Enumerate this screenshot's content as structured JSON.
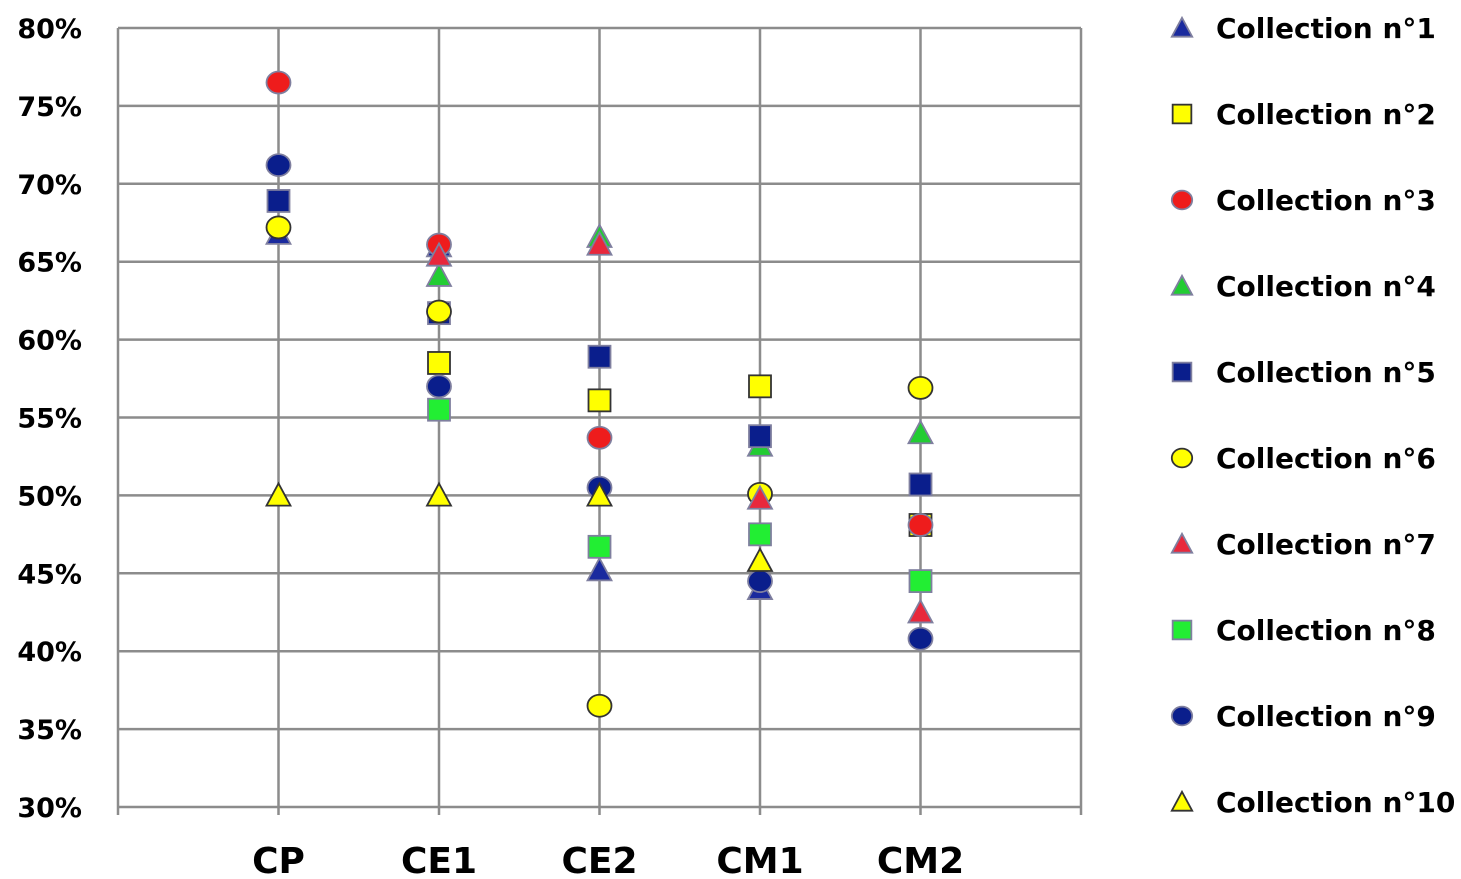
{
  "chart_data": {
    "type": "scatter",
    "categories": [
      "CP",
      "CE1",
      "CE2",
      "CM1",
      "CM2"
    ],
    "ylim": [
      0.3,
      0.8
    ],
    "yticks": [
      0.3,
      0.35,
      0.4,
      0.45,
      0.5,
      0.55,
      0.6,
      0.65,
      0.7,
      0.75,
      0.8
    ],
    "ytick_labels": [
      "30%",
      "35%",
      "40%",
      "45%",
      "50%",
      "55%",
      "60%",
      "65%",
      "70%",
      "75%",
      "80%"
    ],
    "grid": true,
    "legend_position": "right",
    "series": [
      {
        "name": "Collection n°1",
        "marker": "triangle",
        "color": "#1a2a9e",
        "values": [
          0.668,
          0.66,
          0.452,
          0.44,
          null
        ]
      },
      {
        "name": "Collection n°2",
        "marker": "square",
        "color": "#ffff00",
        "values": [
          null,
          0.585,
          0.561,
          0.57,
          0.481
        ]
      },
      {
        "name": "Collection n°3",
        "marker": "circle",
        "color": "#ee1c1c",
        "values": [
          0.765,
          0.661,
          0.537,
          null,
          0.481
        ]
      },
      {
        "name": "Collection n°4",
        "marker": "triangle",
        "color": "#22cc33",
        "values": [
          null,
          0.641,
          0.666,
          0.532,
          0.54
        ]
      },
      {
        "name": "Collection n°5",
        "marker": "square",
        "color": "#0a1e8c",
        "values": [
          0.689,
          0.617,
          0.589,
          0.538,
          0.507
        ]
      },
      {
        "name": "Collection n°6",
        "marker": "circle",
        "color": "#ffff00",
        "values": [
          0.672,
          0.618,
          0.365,
          0.501,
          0.569
        ]
      },
      {
        "name": "Collection n°7",
        "marker": "triangle",
        "color": "#e8283c",
        "values": [
          null,
          0.654,
          0.661,
          0.498,
          0.425
        ]
      },
      {
        "name": "Collection n°8",
        "marker": "square",
        "color": "#22ee33",
        "values": [
          null,
          0.555,
          0.467,
          0.475,
          0.445
        ]
      },
      {
        "name": "Collection n°9",
        "marker": "circle",
        "color": "#0a1e8c",
        "values": [
          0.712,
          0.57,
          0.505,
          0.445,
          0.408
        ]
      },
      {
        "name": "Collection n°10",
        "marker": "triangle",
        "color": "#ffff00",
        "values": [
          0.5,
          0.5,
          0.5,
          0.458,
          null
        ]
      }
    ]
  }
}
